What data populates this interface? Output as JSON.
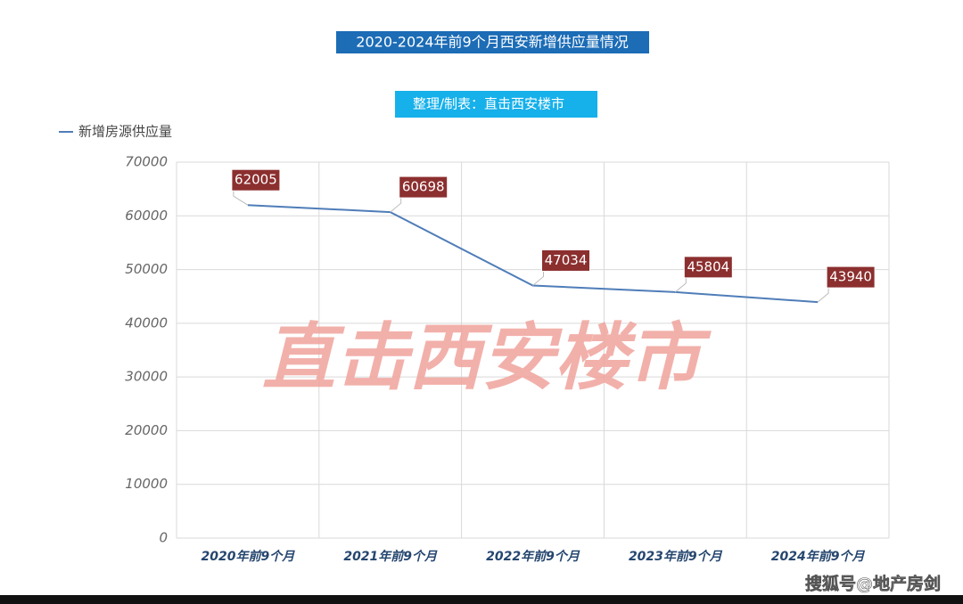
{
  "chart_data": {
    "type": "line",
    "title": "2020-2024年前9个月西安新增供应量情况",
    "subtitle": "整理/制表：直击西安楼市",
    "categories": [
      "2020年前9个月",
      "2021年前9个月",
      "2022年前9个月",
      "2023年前9个月",
      "2024年前9个月"
    ],
    "series": [
      {
        "name": "新增房源供应量",
        "color": "#4f7db8",
        "values": [
          62005,
          60698,
          47034,
          45804,
          43940
        ]
      }
    ],
    "ylim": [
      0,
      70000
    ],
    "yticks": [
      0,
      10000,
      20000,
      30000,
      40000,
      50000,
      60000,
      70000
    ],
    "grid": true,
    "legend": "top-left",
    "annotations": [
      "直击西安楼市",
      "搜狐号@地产房剑"
    ]
  }
}
